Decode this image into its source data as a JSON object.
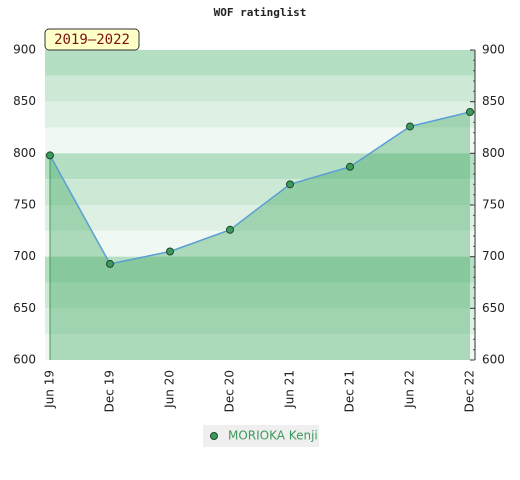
{
  "chart_data": {
    "type": "line",
    "title": "WOF ratinglist",
    "annotation": "2019–2022",
    "categories": [
      "Jun 19",
      "Dec 19",
      "Jun 20",
      "Dec 20",
      "Jun 21",
      "Dec 21",
      "Jun 22",
      "Dec 22"
    ],
    "series": [
      {
        "name": "MORIOKA Kenji",
        "color": "#3d9a5c",
        "values": [
          798,
          693,
          705,
          726,
          770,
          787,
          826,
          840
        ]
      }
    ],
    "ylim": [
      600,
      900
    ],
    "yticks": [
      600,
      650,
      700,
      750,
      800,
      850,
      900
    ]
  }
}
